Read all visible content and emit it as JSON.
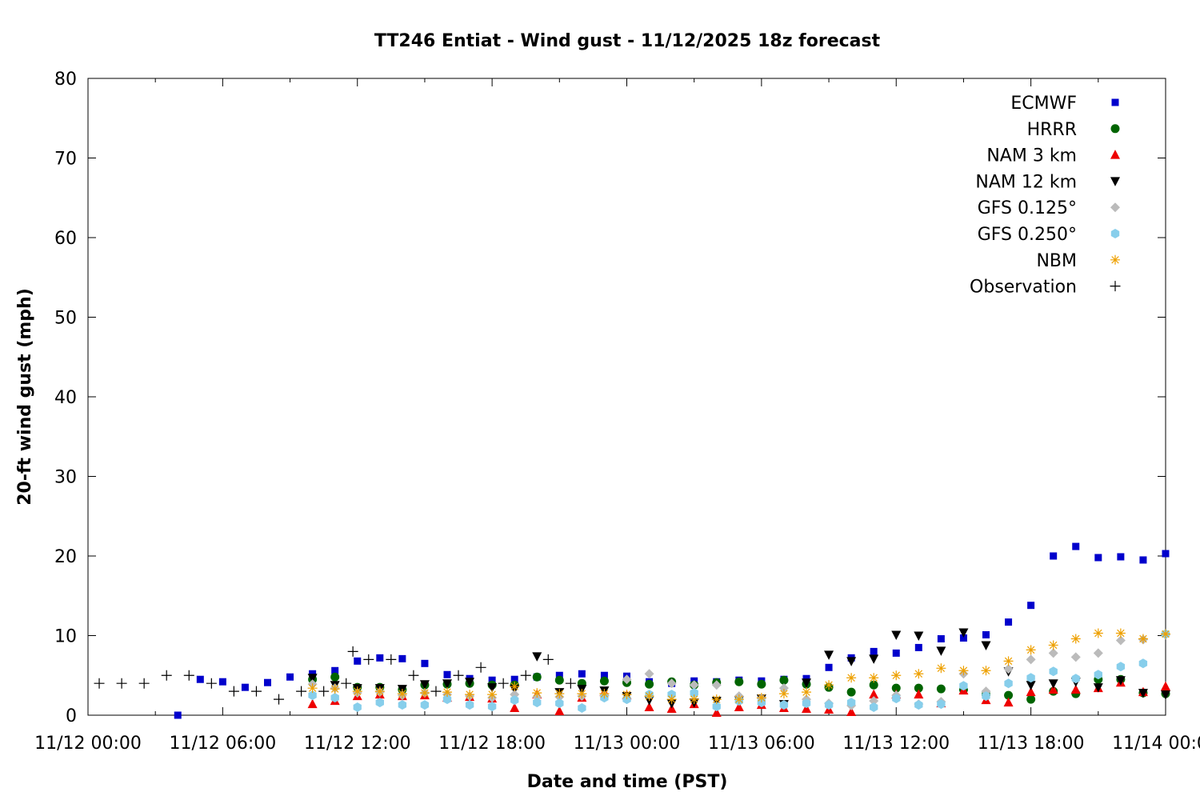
{
  "chart_data": {
    "type": "scatter",
    "title": "TT246 Entiat - Wind gust - 11/12/2025 18z forecast",
    "xlabel": "Date and time (PST)",
    "ylabel": "20-ft wind gust (mph)",
    "x_unit": "hours",
    "xlim": [
      "11/12 00:00",
      "11/14 00:00"
    ],
    "ylim": [
      0,
      80
    ],
    "x_ticks": [
      {
        "hour": 0,
        "label": "11/12 00:00"
      },
      {
        "hour": 6,
        "label": "11/12 06:00"
      },
      {
        "hour": 12,
        "label": "11/12 12:00"
      },
      {
        "hour": 18,
        "label": "11/12 18:00"
      },
      {
        "hour": 24,
        "label": "11/13 00:00"
      },
      {
        "hour": 30,
        "label": "11/13 06:00"
      },
      {
        "hour": 36,
        "label": "11/13 12:00"
      },
      {
        "hour": 42,
        "label": "11/13 18:00"
      },
      {
        "hour": 48,
        "label": "11/14 00:00"
      }
    ],
    "y_ticks": [
      0,
      10,
      20,
      30,
      40,
      50,
      60,
      70,
      80
    ],
    "grid": false,
    "legend_position": "top-right",
    "series": [
      {
        "name": "ECMWF",
        "marker": "square",
        "color": "#0000cc",
        "points": [
          [
            4,
            0
          ],
          [
            5,
            4.5
          ],
          [
            6,
            4.2
          ],
          [
            7,
            3.5
          ],
          [
            8,
            4.1
          ],
          [
            9,
            4.8
          ],
          [
            10,
            5.2
          ],
          [
            11,
            5.6
          ],
          [
            12,
            6.8
          ],
          [
            13,
            7.2
          ],
          [
            14,
            7.1
          ],
          [
            15,
            6.5
          ],
          [
            16,
            5.1
          ],
          [
            17,
            4.6
          ],
          [
            18,
            4.4
          ],
          [
            19,
            4.5
          ],
          [
            20,
            4.8
          ],
          [
            21,
            5
          ],
          [
            22,
            5.2
          ],
          [
            23,
            5
          ],
          [
            24,
            4.9
          ],
          [
            25,
            4.2
          ],
          [
            26,
            4
          ],
          [
            27,
            4.3
          ],
          [
            28,
            4.2
          ],
          [
            29,
            4.4
          ],
          [
            30,
            4.3
          ],
          [
            31,
            4.5
          ],
          [
            32,
            4.6
          ],
          [
            33,
            6
          ],
          [
            34,
            7.2
          ],
          [
            35,
            8
          ],
          [
            36,
            7.8
          ],
          [
            37,
            8.5
          ],
          [
            38,
            9.6
          ],
          [
            39,
            9.7
          ],
          [
            40,
            10.1
          ],
          [
            41,
            11.7
          ],
          [
            42,
            13.8
          ],
          [
            43,
            20
          ],
          [
            44,
            21.2
          ],
          [
            45,
            19.8
          ],
          [
            46,
            19.9
          ],
          [
            47,
            19.5
          ],
          [
            48,
            20.3
          ]
        ]
      },
      {
        "name": "HRRR",
        "marker": "circle",
        "color": "#006400",
        "points": [
          [
            10,
            4.5
          ],
          [
            11,
            4.8
          ],
          [
            12,
            3.5
          ],
          [
            13,
            3.5
          ],
          [
            14,
            3.2
          ],
          [
            15,
            3.8
          ],
          [
            16,
            3.9
          ],
          [
            17,
            4
          ],
          [
            18,
            3.8
          ],
          [
            19,
            3.8
          ],
          [
            20,
            4.8
          ],
          [
            21,
            4.4
          ],
          [
            22,
            4
          ],
          [
            23,
            4.3
          ],
          [
            24,
            4.1
          ],
          [
            25,
            3.9
          ],
          [
            26,
            4.2
          ],
          [
            27,
            3.8
          ],
          [
            28,
            4.1
          ],
          [
            29,
            4.2
          ],
          [
            30,
            3.9
          ],
          [
            31,
            4.4
          ],
          [
            32,
            3.9
          ],
          [
            33,
            3.5
          ],
          [
            34,
            2.9
          ],
          [
            35,
            3.8
          ],
          [
            36,
            3.4
          ],
          [
            37,
            3.4
          ],
          [
            38,
            3.3
          ],
          [
            39,
            3.2
          ],
          [
            40,
            2.6
          ],
          [
            41,
            2.5
          ],
          [
            42,
            2
          ],
          [
            43,
            3
          ],
          [
            44,
            2.7
          ],
          [
            45,
            4.5
          ],
          [
            46,
            4.5
          ],
          [
            47,
            2.8
          ],
          [
            48,
            2.7
          ]
        ]
      },
      {
        "name": "NAM 3 km",
        "marker": "triangle-up",
        "color": "#ee0000",
        "points": [
          [
            10,
            1.4
          ],
          [
            11,
            1.8
          ],
          [
            12,
            2.4
          ],
          [
            13,
            2.6
          ],
          [
            14,
            2.4
          ],
          [
            15,
            2.5
          ],
          [
            16,
            2.2
          ],
          [
            17,
            2.3
          ],
          [
            18,
            2.1
          ],
          [
            19,
            0.9
          ],
          [
            20,
            2.6
          ],
          [
            21,
            0.5
          ],
          [
            22,
            2.2
          ],
          [
            23,
            2.9
          ],
          [
            24,
            2.5
          ],
          [
            25,
            1
          ],
          [
            26,
            0.8
          ],
          [
            27,
            1.4
          ],
          [
            28,
            0.3
          ],
          [
            29,
            1
          ],
          [
            30,
            1.3
          ],
          [
            31,
            0.9
          ],
          [
            32,
            0.8
          ],
          [
            33,
            0.7
          ],
          [
            34,
            0.4
          ],
          [
            35,
            2.6
          ],
          [
            36,
            2.6
          ],
          [
            37,
            2.6
          ],
          [
            38,
            1.5
          ],
          [
            39,
            3.1
          ],
          [
            40,
            1.9
          ],
          [
            41,
            1.6
          ],
          [
            42,
            2.9
          ],
          [
            43,
            3.2
          ],
          [
            44,
            3.2
          ],
          [
            45,
            3.4
          ],
          [
            46,
            4.1
          ],
          [
            47,
            2.9
          ],
          [
            48,
            3.6
          ]
        ]
      },
      {
        "name": "NAM 12 km",
        "marker": "triangle-down",
        "color": "#000000",
        "points": [
          [
            10,
            4.7
          ],
          [
            11,
            3.8
          ],
          [
            12,
            3.4
          ],
          [
            13,
            3.4
          ],
          [
            14,
            3.3
          ],
          [
            15,
            3.9
          ],
          [
            16,
            4
          ],
          [
            17,
            4.2
          ],
          [
            18,
            3.5
          ],
          [
            19,
            3.3
          ],
          [
            20,
            7.4
          ],
          [
            21,
            2.9
          ],
          [
            22,
            3.3
          ],
          [
            23,
            3.1
          ],
          [
            24,
            2.4
          ],
          [
            25,
            1.9
          ],
          [
            26,
            1.5
          ],
          [
            27,
            1.6
          ],
          [
            28,
            1.8
          ],
          [
            29,
            1.9
          ],
          [
            30,
            2.1
          ],
          [
            31,
            1.4
          ],
          [
            32,
            4.1
          ],
          [
            33,
            7.6
          ],
          [
            34,
            6.8
          ],
          [
            35,
            7.1
          ],
          [
            36,
            10.1
          ],
          [
            37,
            10
          ],
          [
            38,
            8.1
          ],
          [
            39,
            10.4
          ],
          [
            40,
            8.8
          ],
          [
            41,
            5.5
          ],
          [
            42,
            3.8
          ],
          [
            43,
            4
          ],
          [
            44,
            4.2
          ],
          [
            45,
            3.5
          ],
          [
            46,
            4.4
          ],
          [
            47,
            2.8
          ],
          [
            48,
            2.6
          ]
        ]
      },
      {
        "name": "GFS 0.125°",
        "marker": "diamond",
        "color": "#bbbbbb",
        "points": [
          [
            10,
            3.9
          ],
          [
            11,
            3.4
          ],
          [
            12,
            2.8
          ],
          [
            13,
            2.9
          ],
          [
            14,
            2.5
          ],
          [
            15,
            2.8
          ],
          [
            16,
            2.6
          ],
          [
            17,
            2.4
          ],
          [
            18,
            2.2
          ],
          [
            19,
            2.6
          ],
          [
            20,
            2.3
          ],
          [
            21,
            2.3
          ],
          [
            22,
            2.4
          ],
          [
            23,
            2.5
          ],
          [
            24,
            4.5
          ],
          [
            25,
            5.2
          ],
          [
            26,
            4
          ],
          [
            27,
            3.8
          ],
          [
            28,
            3.8
          ],
          [
            29,
            2.4
          ],
          [
            30,
            2.1
          ],
          [
            31,
            3.4
          ],
          [
            32,
            2
          ],
          [
            33,
            1.5
          ],
          [
            34,
            1.2
          ],
          [
            35,
            1.8
          ],
          [
            36,
            2.5
          ],
          [
            37,
            1.4
          ],
          [
            38,
            1.7
          ],
          [
            39,
            5.2
          ],
          [
            40,
            3
          ],
          [
            41,
            5.8
          ],
          [
            42,
            7
          ],
          [
            43,
            7.8
          ],
          [
            44,
            7.3
          ],
          [
            45,
            7.8
          ],
          [
            46,
            9.4
          ],
          [
            47,
            9.5
          ],
          [
            48,
            10.1
          ]
        ]
      },
      {
        "name": "GFS 0.250°",
        "marker": "hexagon",
        "color": "#87ceeb",
        "points": [
          [
            10,
            2.5
          ],
          [
            11,
            2.2
          ],
          [
            12,
            1
          ],
          [
            13,
            1.6
          ],
          [
            14,
            1.3
          ],
          [
            15,
            1.3
          ],
          [
            16,
            2
          ],
          [
            17,
            1.3
          ],
          [
            18,
            1.1
          ],
          [
            19,
            1.9
          ],
          [
            20,
            1.6
          ],
          [
            21,
            1.5
          ],
          [
            22,
            0.9
          ],
          [
            23,
            2.2
          ],
          [
            24,
            2
          ],
          [
            25,
            2.6
          ],
          [
            26,
            2.6
          ],
          [
            27,
            2.8
          ],
          [
            28,
            1.1
          ],
          [
            29,
            1.8
          ],
          [
            30,
            1.6
          ],
          [
            31,
            1.3
          ],
          [
            32,
            1.5
          ],
          [
            33,
            1.3
          ],
          [
            34,
            1.6
          ],
          [
            35,
            1
          ],
          [
            36,
            2.1
          ],
          [
            37,
            1.3
          ],
          [
            38,
            1.4
          ],
          [
            39,
            3.7
          ],
          [
            40,
            2.4
          ],
          [
            41,
            4
          ],
          [
            42,
            4.7
          ],
          [
            43,
            5.5
          ],
          [
            44,
            4.6
          ],
          [
            45,
            5.1
          ],
          [
            46,
            6.1
          ],
          [
            47,
            6.5
          ],
          [
            48,
            10.2
          ]
        ]
      },
      {
        "name": "NBM",
        "marker": "asterisk",
        "color": "#eea000",
        "points": [
          [
            10,
            3.4
          ],
          [
            11,
            3.3
          ],
          [
            12,
            3
          ],
          [
            13,
            3
          ],
          [
            14,
            2.7
          ],
          [
            15,
            2.8
          ],
          [
            16,
            2.9
          ],
          [
            17,
            2.6
          ],
          [
            18,
            2.6
          ],
          [
            19,
            3.6
          ],
          [
            20,
            2.8
          ],
          [
            21,
            2.7
          ],
          [
            22,
            2.7
          ],
          [
            23,
            2.7
          ],
          [
            24,
            2.6
          ],
          [
            25,
            2.4
          ],
          [
            26,
            2
          ],
          [
            27,
            2
          ],
          [
            28,
            2
          ],
          [
            29,
            2
          ],
          [
            30,
            2.2
          ],
          [
            31,
            2.7
          ],
          [
            32,
            2.9
          ],
          [
            33,
            3.8
          ],
          [
            34,
            4.7
          ],
          [
            35,
            4.7
          ],
          [
            36,
            5
          ],
          [
            37,
            5.2
          ],
          [
            38,
            5.9
          ],
          [
            39,
            5.6
          ],
          [
            40,
            5.6
          ],
          [
            41,
            6.8
          ],
          [
            42,
            8.2
          ],
          [
            43,
            8.8
          ],
          [
            44,
            9.6
          ],
          [
            45,
            10.3
          ],
          [
            46,
            10.3
          ],
          [
            47,
            9.6
          ],
          [
            48,
            10.2
          ]
        ]
      },
      {
        "name": "Observation",
        "marker": "plus",
        "color": "#000000",
        "points": [
          [
            0.5,
            4
          ],
          [
            1.5,
            4
          ],
          [
            2.5,
            4
          ],
          [
            3.5,
            5
          ],
          [
            4.5,
            5
          ],
          [
            5.5,
            4
          ],
          [
            6.5,
            3
          ],
          [
            7.5,
            3
          ],
          [
            8.5,
            2
          ],
          [
            9.5,
            3
          ],
          [
            10.5,
            3
          ],
          [
            11.5,
            4
          ],
          [
            11.8,
            8
          ],
          [
            12.5,
            7
          ],
          [
            13.5,
            7
          ],
          [
            14.5,
            5
          ],
          [
            15.5,
            3
          ],
          [
            16.5,
            5
          ],
          [
            17.5,
            6
          ],
          [
            18.5,
            4
          ],
          [
            19.5,
            5
          ],
          [
            20.5,
            7
          ],
          [
            21.5,
            4
          ]
        ]
      }
    ]
  }
}
